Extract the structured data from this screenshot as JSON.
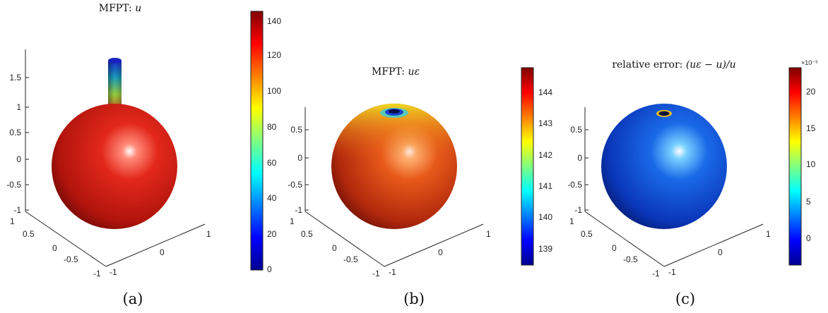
{
  "panels": [
    {
      "id": "a",
      "title_prefix": "MFPT: ",
      "title_math": "u",
      "caption": "(a)",
      "z_ticks": [
        "1.5",
        "1",
        "0.5",
        "0",
        "-0.5",
        "-1"
      ],
      "x_ticks": [
        "1",
        "0.5",
        "0",
        "-0.5",
        "-1"
      ],
      "y_ticks": [
        "-1",
        "0",
        "1"
      ],
      "colorbar_ticks": [
        "140",
        "120",
        "100",
        "80",
        "60",
        "40",
        "20",
        "0"
      ],
      "colorbar_exponent": ""
    },
    {
      "id": "b",
      "title_prefix": "MFPT: ",
      "title_math": "uε",
      "caption": "(b)",
      "z_ticks": [
        "0.5",
        "0",
        "-0.5",
        "-1"
      ],
      "x_ticks": [
        "1",
        "0.5",
        "0",
        "-0.5",
        "-1"
      ],
      "y_ticks": [
        "-1",
        "0",
        "1"
      ],
      "colorbar_ticks": [
        "144",
        "143",
        "142",
        "141",
        "140",
        "139"
      ],
      "colorbar_exponent": ""
    },
    {
      "id": "c",
      "title_prefix": "relative error: ",
      "title_math": "(uε − u)/u",
      "caption": "(c)",
      "z_ticks": [
        "0.5",
        "0",
        "-0.5",
        "-1"
      ],
      "x_ticks": [
        "1",
        "0.5",
        "0",
        "-0.5",
        "-1"
      ],
      "y_ticks": [
        "-1",
        "0",
        "1"
      ],
      "colorbar_ticks": [
        "20",
        "15",
        "10",
        "5",
        "0"
      ],
      "colorbar_exponent": "×10⁻³"
    }
  ],
  "colors": {
    "jet_low": "#0000ff",
    "jet_mid": "#80ff80",
    "jet_high": "#ff0000",
    "sphere_red": "#e0281c",
    "sphere_blue": "#1a5ae0"
  }
}
